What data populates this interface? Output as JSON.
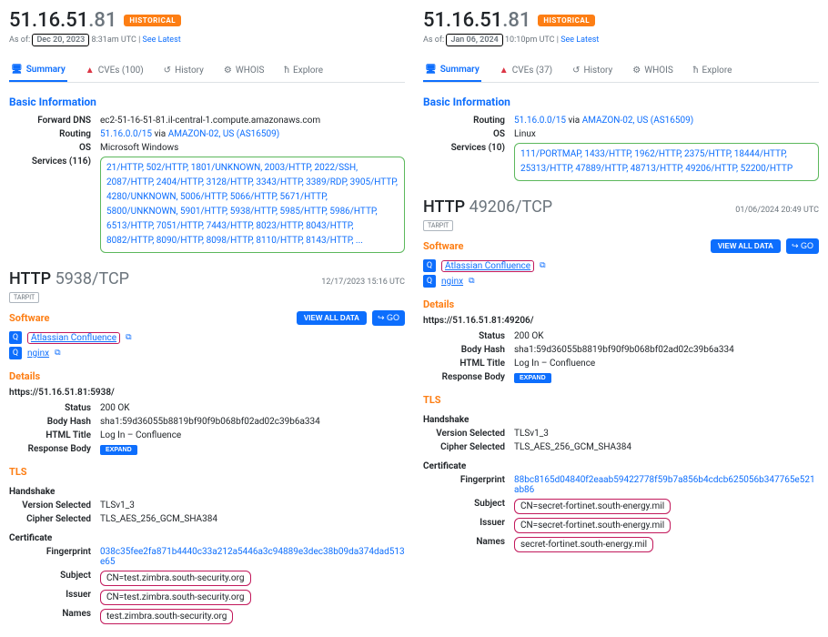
{
  "left": {
    "ip_prefix": "51.16.51",
    "ip_last": ".81",
    "badge": "HISTORICAL",
    "asof_prefix": "As of:",
    "asof_date": "Dec 20, 2023",
    "asof_time": "8:31am UTC |",
    "asof_link": "See Latest",
    "tabs": {
      "summary": "Summary",
      "cves": "CVEs (100)",
      "history": "History",
      "whois": "WHOIS",
      "explore": "Explore"
    },
    "basic_info": "Basic Information",
    "fwd_dns_label": "Forward DNS",
    "fwd_dns": "ec2-51-16-51-81.il-central-1.compute.amazonaws.com",
    "routing_label": "Routing",
    "routing_cidr": "51.16.0.0/15",
    "routing_via": "via",
    "routing_as": "AMAZON-02, US (AS16509)",
    "os_label": "OS",
    "os": "Microsoft Windows",
    "services_label": "Services (116)",
    "services": "21/HTTP, 502/HTTP, 1801/UNKNOWN, 2003/HTTP, 2022/SSH, 2087/HTTP, 2404/HTTP, 3128/HTTP, 3343/HTTP, 3389/RDP, 3905/HTTP, 4280/UNKNOWN, 5006/HTTP, 5066/HTTP, 5671/HTTP, 5800/UNKNOWN, 5901/HTTP, 5938/HTTP, 5985/HTTP, 5986/HTTP, 6513/HTTP, 7051/HTTP, 7443/HTTP, 8023/HTTP, 8043/HTTP, 8082/HTTP, 8090/HTTP, 8098/HTTP, 8110/HTTP, 8143/HTTP, ...",
    "http": {
      "title_proto": "HTTP",
      "title_port": "5938/TCP",
      "timestamp": "12/17/2023 15:16 UTC",
      "tarpit": "TARPIT",
      "software": "Software",
      "view_all": "VIEW ALL DATA",
      "go": "↪ GO",
      "sw1": "Atlassian Confluence",
      "sw2": "nginx",
      "details": "Details",
      "url": "https://51.16.51.81:5938/",
      "status_label": "Status",
      "status": "200 OK",
      "body_hash_label": "Body Hash",
      "body_hash": "sha1:59d36055b8819bf90f9b068bf02ad02c39b6a334",
      "html_title_label": "HTML Title",
      "html_title": "Log In – Confluence",
      "resp_body_label": "Response Body",
      "expand": "EXPAND",
      "tls": "TLS",
      "handshake": "Handshake",
      "ver_label": "Version Selected",
      "ver": "TLSv1_3",
      "cipher_label": "Cipher Selected",
      "cipher": "TLS_AES_256_GCM_SHA384",
      "cert": "Certificate",
      "fp_label": "Fingerprint",
      "fp": "038c35fee2fa871b4440c33a212a5446a3c94889e3dec38b09da374dad513e65",
      "subj_label": "Subject",
      "subj": "CN=test.zimbra.south-security.org",
      "issuer_label": "Issuer",
      "issuer": "CN=test.zimbra.south-security.org",
      "names_label": "Names",
      "names": "test.zimbra.south-security.org"
    }
  },
  "right": {
    "ip_prefix": "51.16.51",
    "ip_last": ".81",
    "badge": "HISTORICAL",
    "asof_prefix": "As of:",
    "asof_date": "Jan 06, 2024",
    "asof_time": "10:10pm UTC |",
    "asof_link": "See Latest",
    "tabs": {
      "summary": "Summary",
      "cves": "CVEs (37)",
      "history": "History",
      "whois": "WHOIS",
      "explore": "Explore"
    },
    "basic_info": "Basic Information",
    "routing_label": "Routing",
    "routing_cidr": "51.16.0.0/15",
    "routing_via": "via",
    "routing_as": "AMAZON-02, US (AS16509)",
    "os_label": "OS",
    "os": "Linux",
    "services_label": "Services (10)",
    "services": "111/PORTMAP, 1433/HTTP, 1962/HTTP, 2375/HTTP, 18444/HTTP, 25313/HTTP, 47889/HTTP, 48713/HTTP, 49206/HTTP, 52200/HTTP",
    "http": {
      "title_proto": "HTTP",
      "title_port": "49206/TCP",
      "timestamp": "01/06/2024 20:49 UTC",
      "tarpit": "TARPIT",
      "software": "Software",
      "view_all": "VIEW ALL DATA",
      "go": "↪ GO",
      "sw1": "Atlassian Confluence",
      "sw2": "nginx",
      "details": "Details",
      "url": "https://51.16.51.81:49206/",
      "status_label": "Status",
      "status": "200 OK",
      "body_hash_label": "Body Hash",
      "body_hash": "sha1:59d36055b8819bf90f9b068bf02ad02c39b6a334",
      "html_title_label": "HTML Title",
      "html_title": "Log In – Confluence",
      "resp_body_label": "Response Body",
      "expand": "EXPAND",
      "tls": "TLS",
      "handshake": "Handshake",
      "ver_label": "Version Selected",
      "ver": "TLSv1_3",
      "cipher_label": "Cipher Selected",
      "cipher": "TLS_AES_256_GCM_SHA384",
      "cert": "Certificate",
      "fp_label": "Fingerprint",
      "fp": "88bc8165d04840f2eaab59422778f59b7a856b4cdcb625056b347765e521ab86",
      "subj_label": "Subject",
      "subj": "CN=secret-fortinet.south-energy.mil",
      "issuer_label": "Issuer",
      "issuer": "CN=secret-fortinet.south-energy.mil",
      "names_label": "Names",
      "names": "secret-fortinet.south-energy.mil"
    }
  }
}
